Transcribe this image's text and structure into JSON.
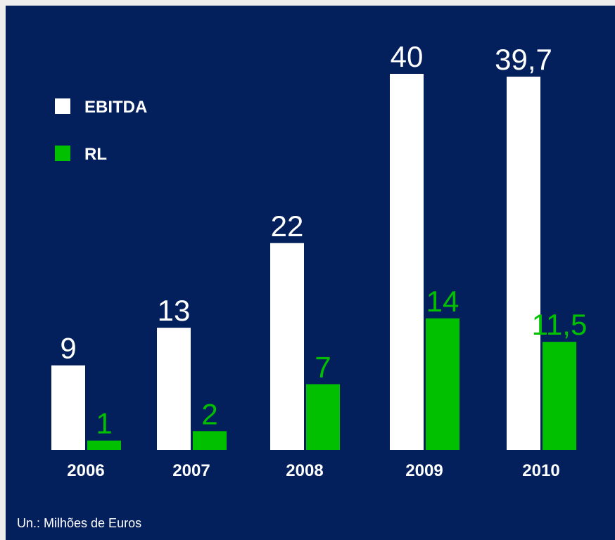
{
  "chart_data": {
    "type": "bar",
    "categories": [
      "2006",
      "2007",
      "2008",
      "2009",
      "2010"
    ],
    "series": [
      {
        "name": "EBITDA",
        "color": "#ffffff",
        "values": [
          9,
          13,
          22,
          40,
          39.7
        ],
        "value_labels": [
          "9",
          "13",
          "22",
          "40",
          "39,7"
        ]
      },
      {
        "name": "RL",
        "color": "#00c000",
        "values": [
          1,
          2,
          7,
          14,
          11.5
        ],
        "value_labels": [
          "1",
          "2",
          "7",
          "14",
          "11,5"
        ]
      }
    ],
    "note": "Un.: Milhões de Euros"
  }
}
